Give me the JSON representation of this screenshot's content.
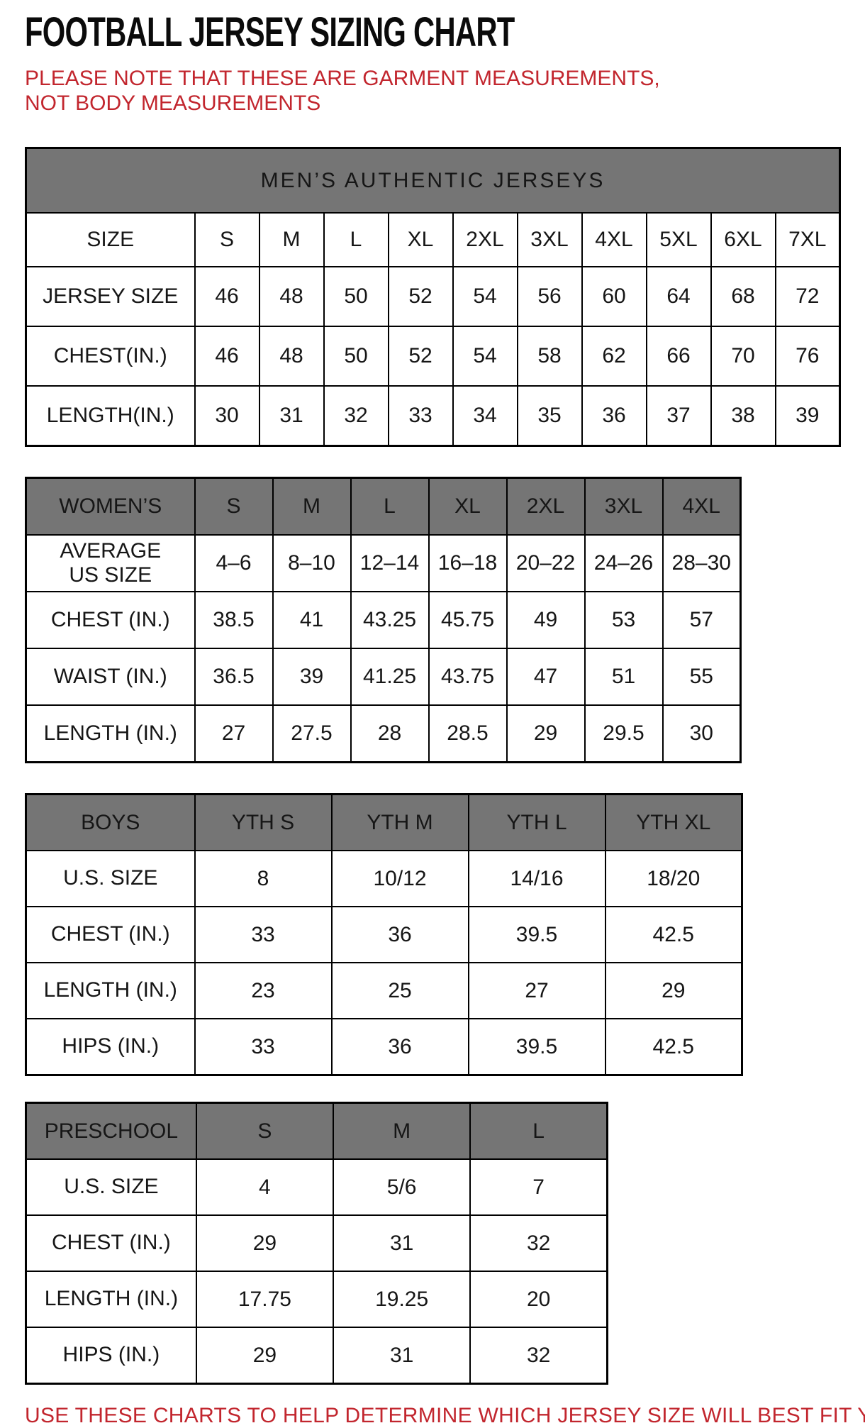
{
  "page": {
    "title": "FOOTBALL JERSEY SIZING CHART",
    "note_top": "PLEASE NOTE THAT THESE ARE GARMENT MEASUREMENTS, NOT BODY MEASUREMENTS",
    "note_bottom": "USE THESE CHARTS TO HELP DETERMINE WHICH JERSEY SIZE WILL BEST FIT YOU."
  },
  "colors": {
    "header_gray": "#757575",
    "note_red": "#C2262E",
    "border_black": "#000000"
  },
  "tables": {
    "mens": {
      "caption": "MEN’S AUTHENTIC JERSEYS",
      "header_row": [
        "SIZE",
        "S",
        "M",
        "L",
        "XL",
        "2XL",
        "3XL",
        "4XL",
        "5XL",
        "6XL",
        "7XL"
      ],
      "rows": [
        {
          "label": "JERSEY SIZE",
          "values": [
            "46",
            "48",
            "50",
            "52",
            "54",
            "56",
            "60",
            "64",
            "68",
            "72"
          ]
        },
        {
          "label": "CHEST(IN.)",
          "values": [
            "46",
            "48",
            "50",
            "52",
            "54",
            "58",
            "62",
            "66",
            "70",
            "76"
          ]
        },
        {
          "label": "LENGTH(IN.)",
          "values": [
            "30",
            "31",
            "32",
            "33",
            "34",
            "35",
            "36",
            "37",
            "38",
            "39"
          ]
        }
      ]
    },
    "womens": {
      "header_row": [
        "WOMEN’S",
        "S",
        "M",
        "L",
        "XL",
        "2XL",
        "3XL",
        "4XL"
      ],
      "rows": [
        {
          "label": "AVERAGE\nUS SIZE",
          "values": [
            "4–6",
            "8–10",
            "12–14",
            "16–18",
            "20–22",
            "24–26",
            "28–30"
          ]
        },
        {
          "label": "CHEST (IN.)",
          "values": [
            "38.5",
            "41",
            "43.25",
            "45.75",
            "49",
            "53",
            "57"
          ]
        },
        {
          "label": "WAIST (IN.)",
          "values": [
            "36.5",
            "39",
            "41.25",
            "43.75",
            "47",
            "51",
            "55"
          ]
        },
        {
          "label": "LENGTH (IN.)",
          "values": [
            "27",
            "27.5",
            "28",
            "28.5",
            "29",
            "29.5",
            "30"
          ]
        }
      ]
    },
    "boys": {
      "header_row": [
        "BOYS",
        "YTH S",
        "YTH M",
        "YTH L",
        "YTH XL"
      ],
      "rows": [
        {
          "label": "U.S. SIZE",
          "values": [
            "8",
            "10/12",
            "14/16",
            "18/20"
          ]
        },
        {
          "label": "CHEST (IN.)",
          "values": [
            "33",
            "36",
            "39.5",
            "42.5"
          ]
        },
        {
          "label": "LENGTH (IN.)",
          "values": [
            "23",
            "25",
            "27",
            "29"
          ]
        },
        {
          "label": "HIPS (IN.)",
          "values": [
            "33",
            "36",
            "39.5",
            "42.5"
          ]
        }
      ]
    },
    "preschool": {
      "header_row": [
        "PRESCHOOL",
        "S",
        "M",
        "L"
      ],
      "rows": [
        {
          "label": "U.S. SIZE",
          "values": [
            "4",
            "5/6",
            "7"
          ]
        },
        {
          "label": "CHEST (IN.)",
          "values": [
            "29",
            "31",
            "32"
          ]
        },
        {
          "label": "LENGTH (IN.)",
          "values": [
            "17.75",
            "19.25",
            "20"
          ]
        },
        {
          "label": "HIPS (IN.)",
          "values": [
            "29",
            "31",
            "32"
          ]
        }
      ]
    }
  }
}
